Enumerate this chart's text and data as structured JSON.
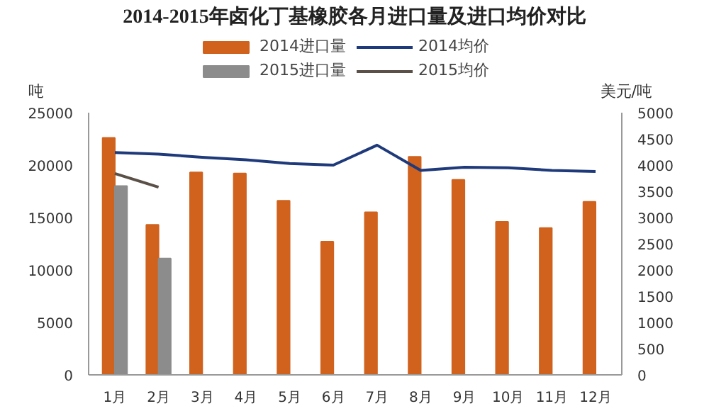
{
  "chart_data": {
    "type": "bar",
    "title": "2014-2015年卤化丁基橡胶各月进口量及进口均价对比",
    "ylabel": "吨",
    "y2label": "美元/吨",
    "categories": [
      "1月",
      "2月",
      "3月",
      "4月",
      "5月",
      "6月",
      "7月",
      "8月",
      "9月",
      "10月",
      "11月",
      "12月"
    ],
    "series": [
      {
        "name": "2014进口量",
        "color": "#d0621e",
        "values": [
          22600,
          14300,
          19300,
          19200,
          16600,
          12700,
          15500,
          20800,
          18600,
          14600,
          14000,
          16500
        ]
      },
      {
        "name": "2015进口量",
        "color": "#8c8c8c",
        "values": [
          18000,
          11100,
          null,
          null,
          null,
          null,
          null,
          null,
          null,
          null,
          null,
          null
        ]
      },
      {
        "name": "2014均价",
        "type": "line",
        "axis": "y2",
        "color": "#1f3a7a",
        "values": [
          4240,
          4210,
          4150,
          4100,
          4030,
          4000,
          4380,
          3900,
          3960,
          3950,
          3900,
          3880
        ]
      },
      {
        "name": "2015均价",
        "type": "line",
        "axis": "y2",
        "color": "#5a5048",
        "values": [
          3840,
          3580,
          null,
          null,
          null,
          null,
          null,
          null,
          null,
          null,
          null,
          null
        ]
      }
    ],
    "ylim": [
      0,
      25000
    ],
    "yticks": [
      0,
      5000,
      10000,
      15000,
      20000,
      25000
    ],
    "y2lim": [
      0,
      5000
    ],
    "y2ticks": [
      0,
      500,
      1000,
      1500,
      2000,
      2500,
      3000,
      3500,
      4000,
      4500,
      5000
    ],
    "grid": false,
    "legend": "top",
    "marker": "none"
  }
}
